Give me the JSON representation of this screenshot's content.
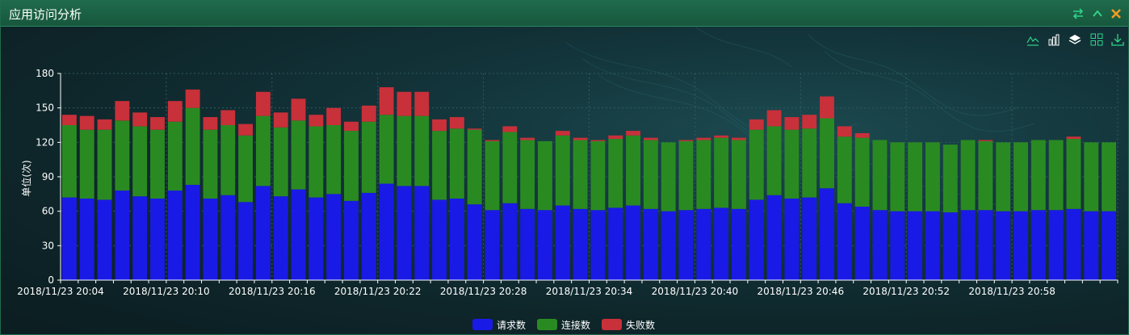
{
  "panel": {
    "title": "应用访问分析"
  },
  "titlebar_icons": [
    "swap-icon",
    "collapse-icon",
    "close-icon"
  ],
  "toolbox_icons": [
    "line-chart-icon",
    "bar-chart-icon",
    "stack-icon",
    "tiled-icon",
    "download-icon"
  ],
  "colors": {
    "requests": "#1a1ae6",
    "connections": "#2a8a22",
    "failures": "#c8303a",
    "axis": "#ffffff",
    "grid": "#2f5a5e"
  },
  "chart_data": {
    "type": "bar",
    "stacked": true,
    "ylabel": "单位(次)",
    "ylim": [
      0,
      180
    ],
    "yticks": [
      0,
      30,
      60,
      90,
      120,
      150,
      180
    ],
    "xtick_labels": [
      "2018/11/23 20:04",
      "2018/11/23 20:10",
      "2018/11/23 20:16",
      "2018/11/23 20:22",
      "2018/11/23 20:28",
      "2018/11/23 20:34",
      "2018/11/23 20:40",
      "2018/11/23 20:46",
      "2018/11/23 20:52",
      "2018/11/23 20:58"
    ],
    "xtick_every": 6,
    "grid": true,
    "legend_position": "bottom-center",
    "series": [
      {
        "name": "请求数",
        "values": [
          72,
          71,
          70,
          78,
          73,
          71,
          78,
          83,
          71,
          74,
          68,
          82,
          73,
          79,
          72,
          75,
          69,
          76,
          84,
          82,
          82,
          70,
          71,
          66,
          61,
          67,
          62,
          61,
          65,
          62,
          61,
          63,
          65,
          62,
          60,
          61,
          62,
          63,
          62,
          70,
          74,
          71,
          72,
          80,
          67,
          64,
          61,
          60,
          60,
          60,
          59,
          61,
          61,
          60,
          60,
          61,
          61,
          62,
          60,
          60
        ]
      },
      {
        "name": "连接数",
        "values": [
          63,
          60,
          61,
          61,
          61,
          60,
          60,
          67,
          60,
          61,
          58,
          61,
          60,
          60,
          62,
          60,
          61,
          62,
          60,
          61,
          61,
          60,
          61,
          65,
          60,
          62,
          60,
          60,
          61,
          60,
          60,
          60,
          61,
          60,
          60,
          60,
          60,
          61,
          60,
          61,
          60,
          60,
          60,
          61,
          58,
          60,
          61,
          60,
          60,
          60,
          59,
          61,
          60,
          60,
          60,
          61,
          61,
          61,
          60,
          60
        ]
      },
      {
        "name": "失败数",
        "values": [
          9,
          12,
          9,
          17,
          12,
          11,
          18,
          16,
          11,
          13,
          10,
          21,
          13,
          19,
          10,
          15,
          8,
          14,
          24,
          21,
          21,
          10,
          10,
          1,
          1,
          5,
          2,
          0,
          4,
          2,
          1,
          3,
          4,
          2,
          0,
          1,
          2,
          2,
          2,
          9,
          14,
          11,
          12,
          19,
          9,
          4,
          0,
          0,
          0,
          0,
          0,
          0,
          1,
          0,
          0,
          0,
          0,
          2,
          0,
          0
        ]
      }
    ]
  }
}
